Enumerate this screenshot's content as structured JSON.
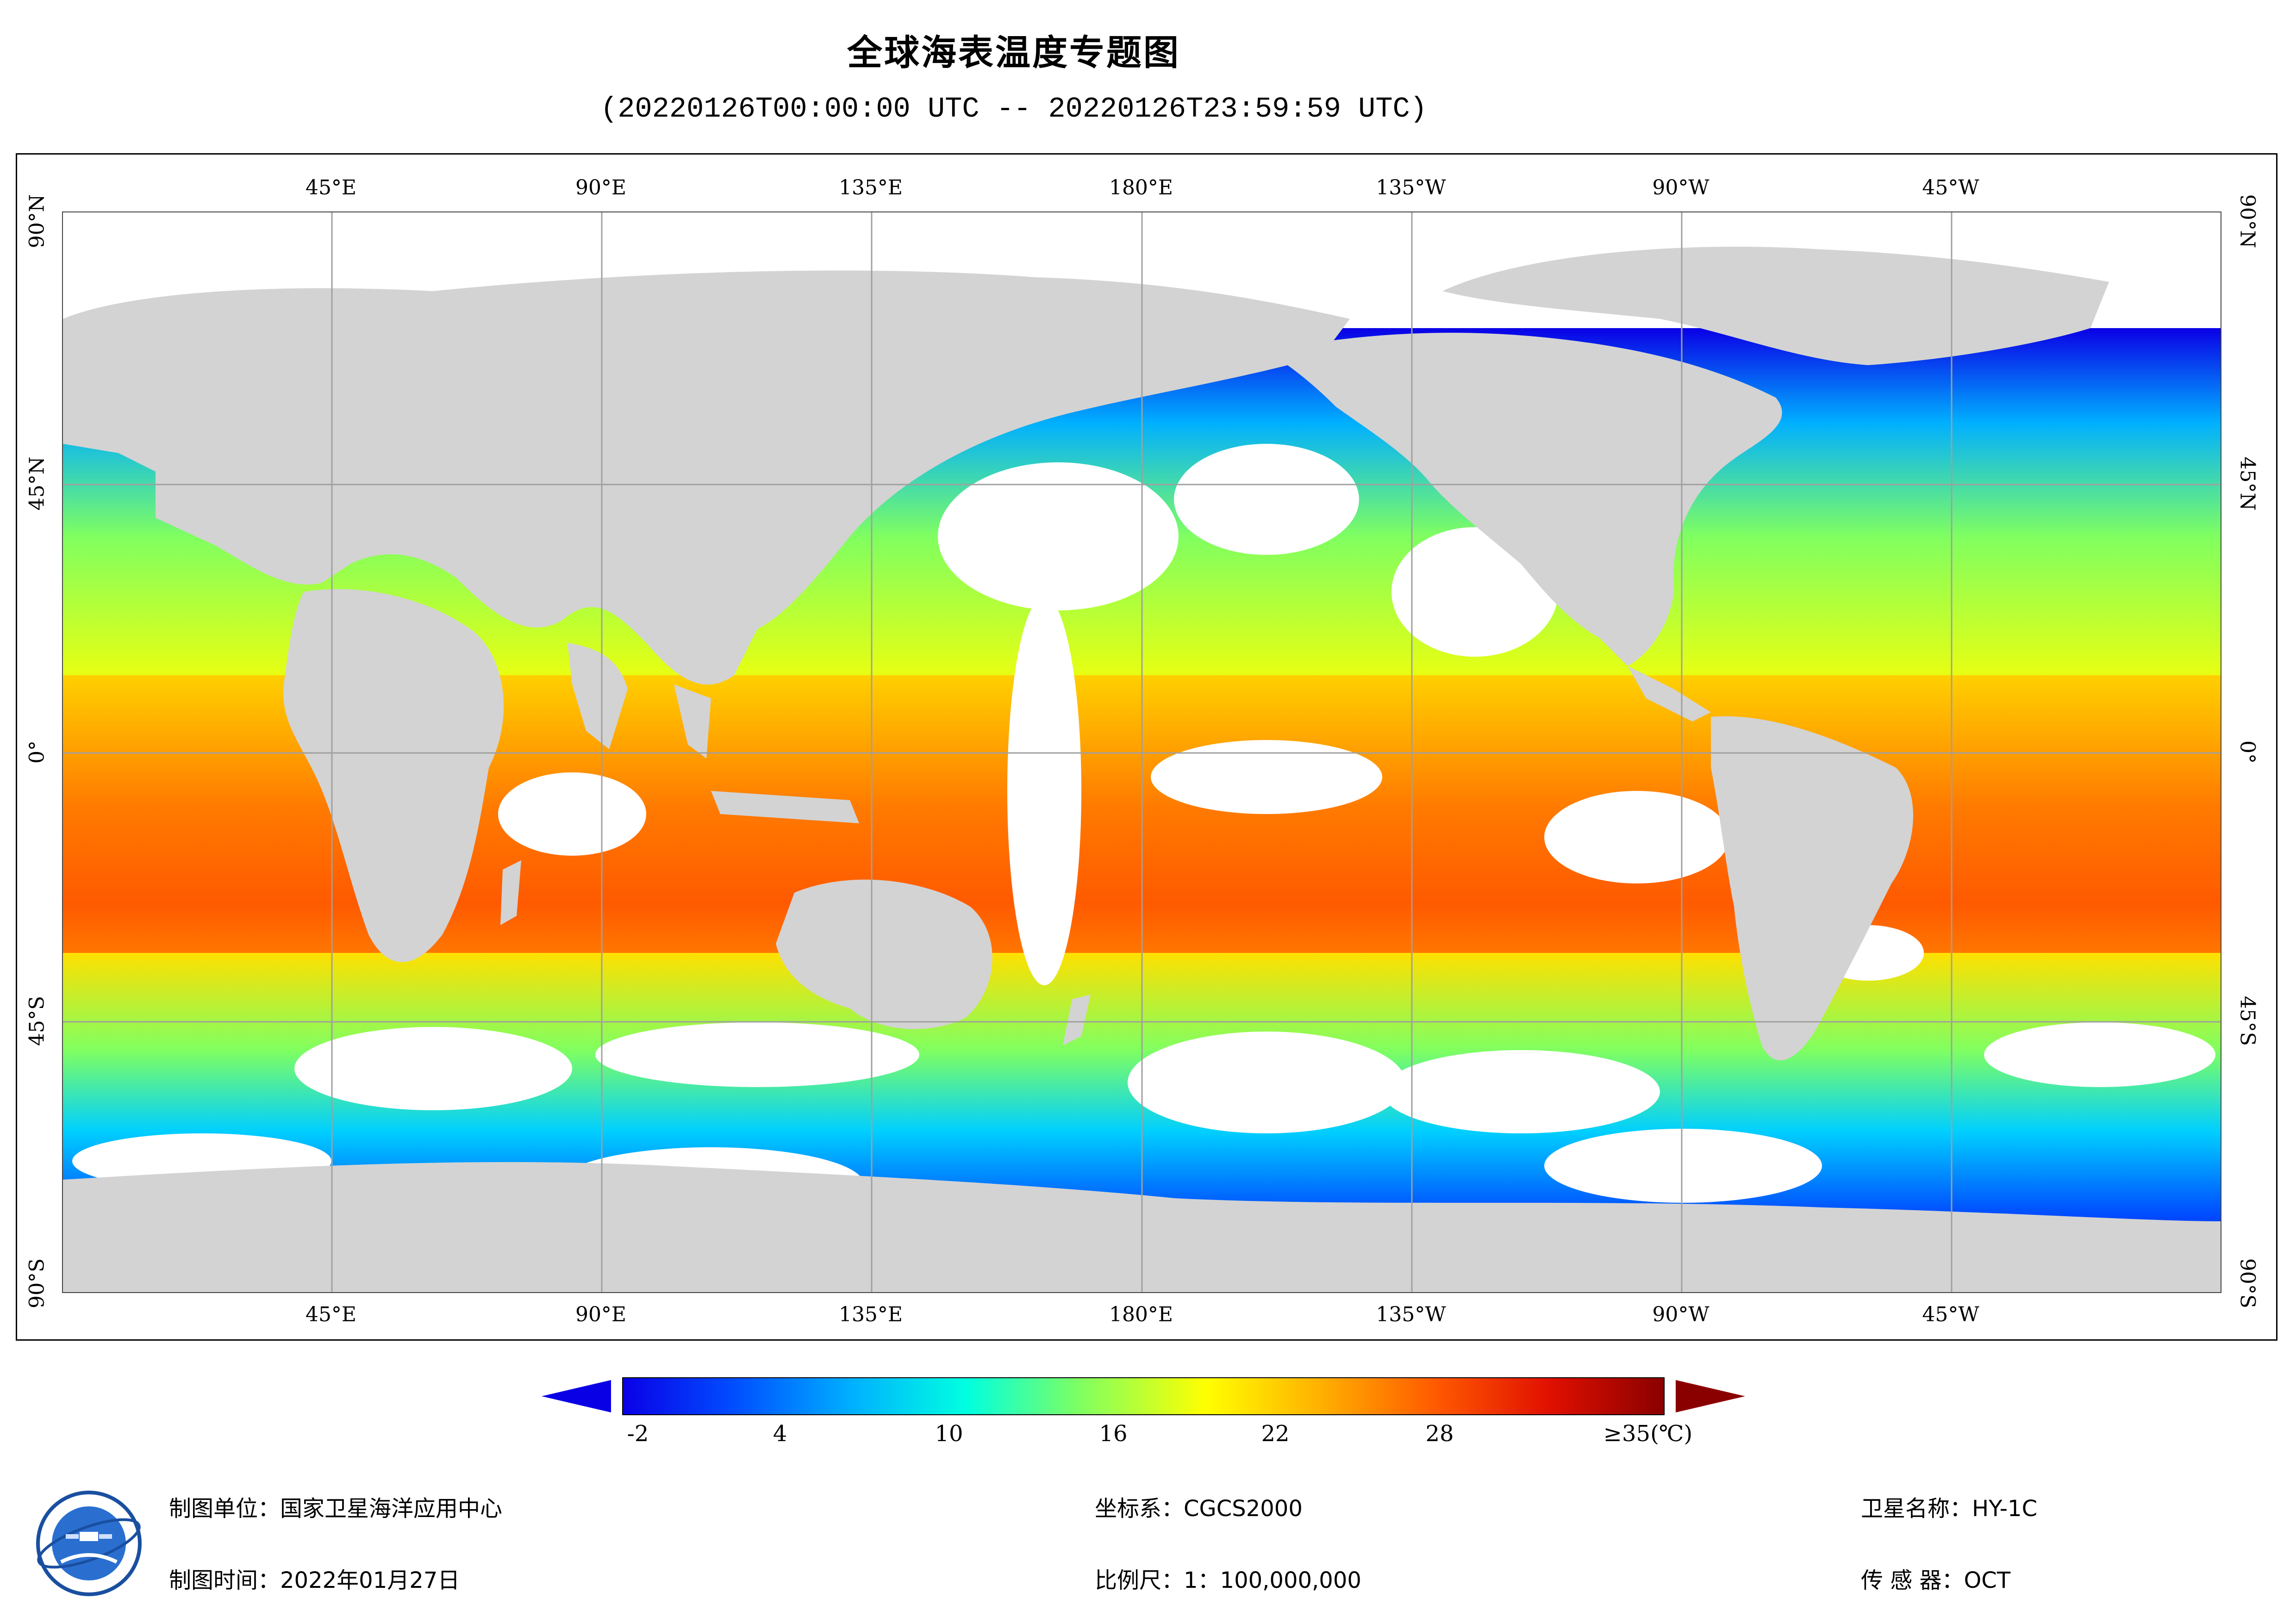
{
  "title": "全球海表温度专题图",
  "subtitle": "(20220126T00:00:00 UTC -- 20220126T23:59:59 UTC)",
  "map": {
    "top_longitude_labels": [
      "45°E",
      "90°E",
      "135°E",
      "180°E",
      "135°W",
      "90°W",
      "45°W"
    ],
    "bottom_longitude_labels": [
      "45°E",
      "90°E",
      "135°E",
      "180°E",
      "135°W",
      "90°W",
      "45°W"
    ],
    "left_latitude_labels": [
      "90°N",
      "45°N",
      "0°",
      "45°S",
      "90°S"
    ],
    "right_latitude_labels": [
      "90°N",
      "45°N",
      "0°",
      "45°S",
      "90°S"
    ],
    "colors": {
      "land": "#d3d3d3",
      "no_data": "#ffffff",
      "grid": "#a0a0a0"
    }
  },
  "colorbar": {
    "tick_labels": [
      "-2",
      "4",
      "10",
      "16",
      "22",
      "28",
      "≥35(℃)"
    ],
    "range_celsius": [
      -2,
      35
    ],
    "colors": [
      "#0a00e6",
      "#0050ff",
      "#00b0ff",
      "#00ffe0",
      "#80ff60",
      "#ffff00",
      "#ffb000",
      "#ff5a00",
      "#e01000",
      "#8a0000"
    ]
  },
  "footer": {
    "mapping_unit": "制图单位：国家卫星海洋应用中心",
    "mapping_time": "制图时间：2022年01月27日",
    "coordinate_system": "坐标系：CGCS2000",
    "scale": "比例尺：1：100,000,000",
    "satellite": "卫星名称：HY-1C",
    "sensor": "传 感 器：OCT"
  }
}
